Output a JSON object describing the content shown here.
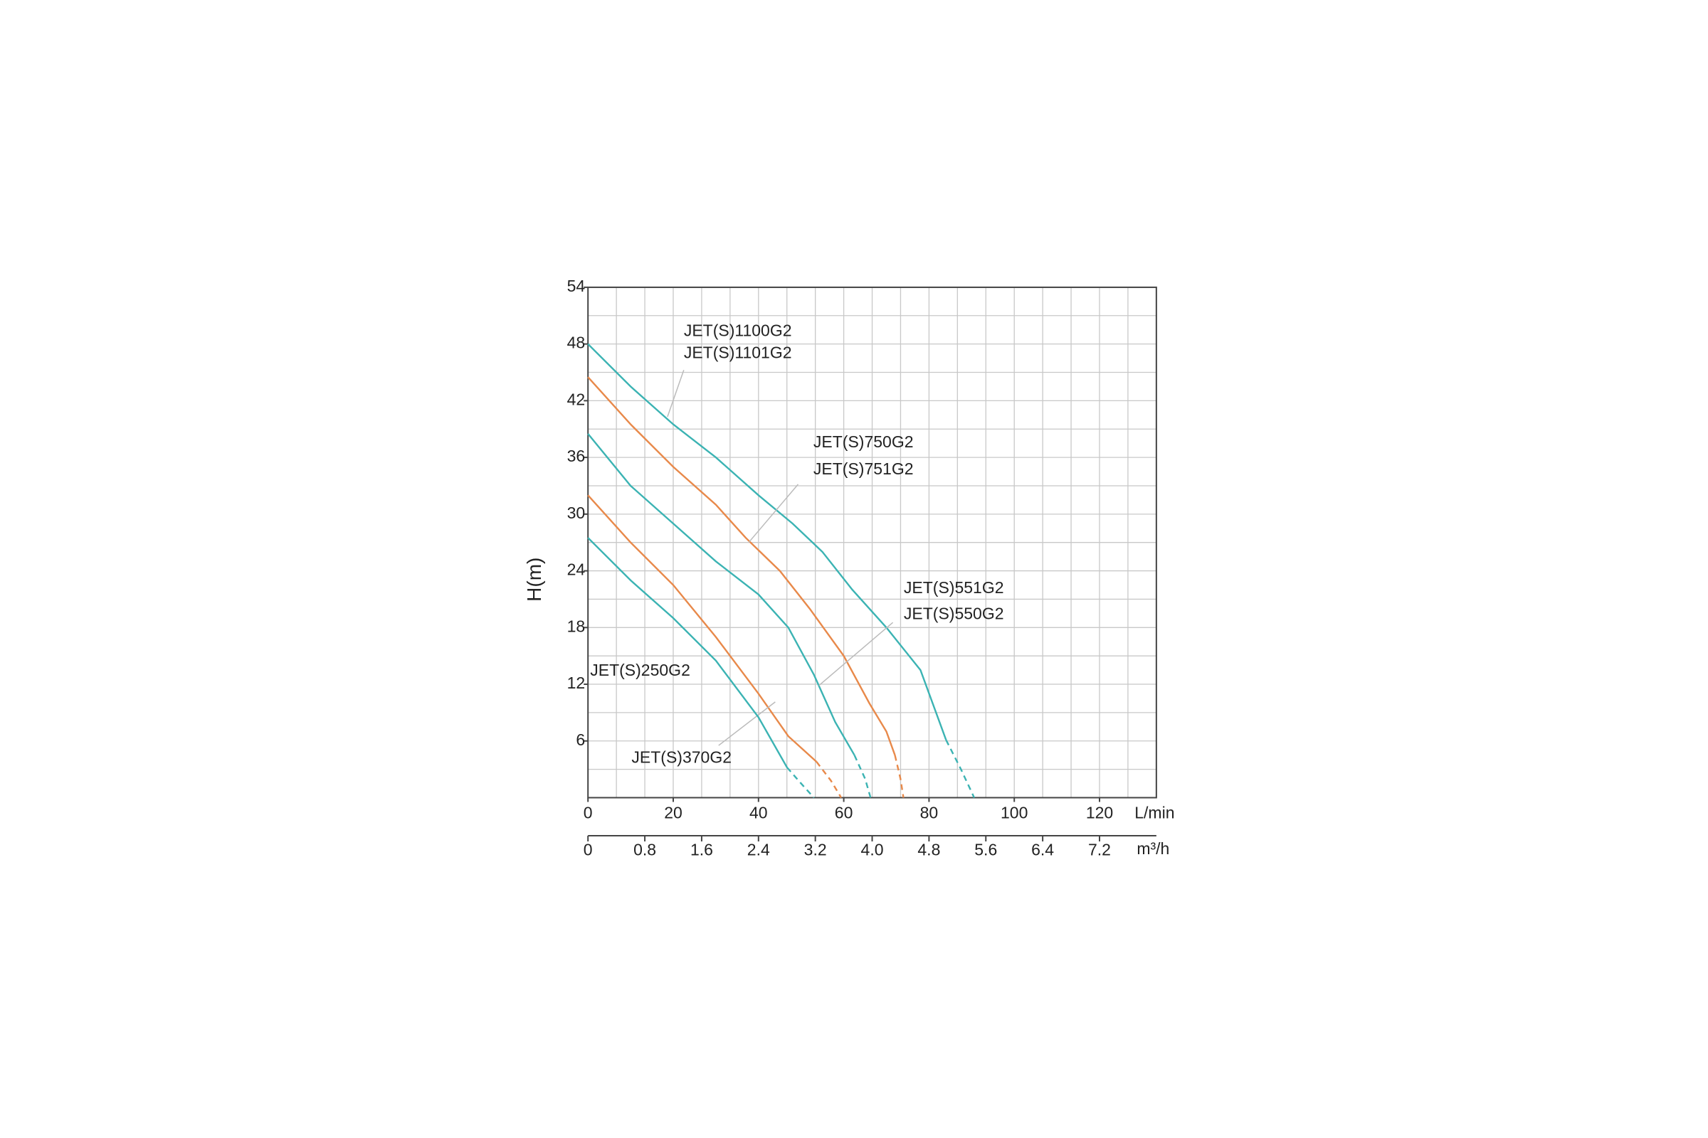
{
  "chart_data": {
    "type": "line",
    "ylabel": "H(m)",
    "xlabel": "L/min",
    "x2label": "m³/h",
    "xlim": [
      0,
      133.33
    ],
    "xticks": [
      0,
      20,
      40,
      60,
      80,
      100,
      120
    ],
    "x2lim": [
      0,
      8
    ],
    "x2ticks": [
      0,
      0.8,
      1.6,
      2.4,
      3.2,
      {
        "value": 4,
        "label": "4.0"
      },
      4.8,
      5.6,
      6.4,
      7.2
    ],
    "x2grid": [
      0.4,
      0.8,
      1.2,
      1.6,
      2,
      2.4,
      2.8,
      3.2,
      3.6,
      4,
      4.4,
      4.8,
      5.2,
      5.6,
      6,
      6.4,
      6.8,
      7.2,
      7.6
    ],
    "ylim": [
      0,
      54
    ],
    "yticks": [
      6,
      12,
      18,
      24,
      30,
      36,
      42,
      48,
      54
    ],
    "ygrid": [
      3,
      6,
      9,
      12,
      15,
      18,
      21,
      24,
      27,
      30,
      33,
      36,
      39,
      42,
      45,
      48,
      51
    ],
    "grid": true,
    "series": [
      {
        "labels": [
          "JET(S)1100G2",
          "JET(S)1101G2"
        ],
        "color": "#3bb3b3",
        "x": [
          0,
          10,
          20,
          30,
          40,
          48,
          55,
          62,
          70,
          78,
          84
        ],
        "values": [
          48,
          43.5,
          39.5,
          36,
          32,
          29,
          26,
          22,
          18,
          13.5,
          6.1
        ],
        "dashed_x": [
          84,
          87.5,
          90.6
        ],
        "dashed_values": [
          6.1,
          3,
          0
        ]
      },
      {
        "labels": [
          "JET(S)750G2",
          "JET(S)751G2"
        ],
        "color": "#e8894a",
        "x": [
          0,
          10,
          20,
          30,
          37,
          45,
          52,
          60,
          66,
          70,
          72
        ],
        "values": [
          44.5,
          39.5,
          35,
          31,
          27.5,
          24,
          20,
          15,
          10,
          7,
          4.5
        ],
        "dashed_x": [
          72,
          73.3,
          74
        ],
        "dashed_values": [
          4.5,
          2,
          0
        ]
      },
      {
        "labels": [
          "JET(S)551G2",
          "JET(S)550G2"
        ],
        "color": "#3bb3b3",
        "x": [
          0,
          10,
          20,
          30,
          40,
          47,
          53,
          58,
          62.5
        ],
        "values": [
          38.5,
          33,
          29,
          25,
          21.5,
          18,
          13,
          8,
          4.5
        ],
        "dashed_x": [
          62.5,
          65,
          66.3
        ],
        "dashed_values": [
          4.5,
          2,
          0
        ]
      },
      {
        "labels": [
          "JET(S)370G2"
        ],
        "color": "#e8894a",
        "x": [
          0,
          10,
          20,
          30,
          40,
          47,
          53.6
        ],
        "values": [
          32,
          27,
          22.5,
          17,
          11,
          6.5,
          3.8
        ],
        "dashed_x": [
          53.6,
          57,
          59.4
        ],
        "dashed_values": [
          3.8,
          1.8,
          0
        ]
      },
      {
        "labels": [
          "JET(S)250G2"
        ],
        "color": "#3bb3b3",
        "x": [
          0,
          10,
          20,
          30,
          40,
          46.7
        ],
        "values": [
          27.5,
          23,
          19,
          14.5,
          8.5,
          3.2
        ],
        "dashed_x": [
          46.7,
          50,
          53
        ],
        "dashed_values": [
          3.2,
          1.5,
          0
        ]
      }
    ]
  }
}
